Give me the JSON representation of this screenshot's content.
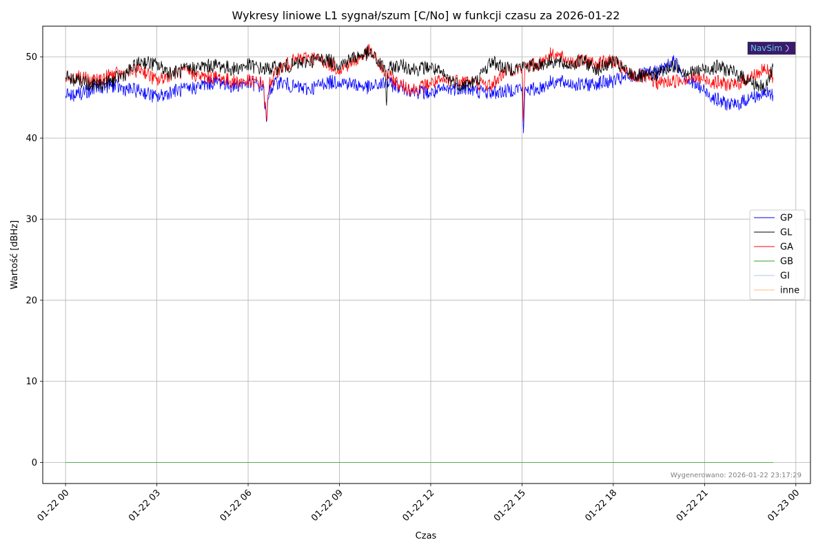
{
  "chart_data": {
    "type": "line",
    "title": "Wykresy liniowe L1 sygnał/szum [C/No] w funkcji czasu za 2026-01-22",
    "xlabel": "Czas",
    "ylabel": "Wartość [dBHz]",
    "x_range_hours": [
      -0.75,
      24.48
    ],
    "x_tick_hours": [
      0,
      3,
      6,
      9,
      12,
      15,
      18,
      21,
      24
    ],
    "x_tick_labels": [
      "01-22 00",
      "01-22 03",
      "01-22 06",
      "01-22 09",
      "01-22 12",
      "01-22 15",
      "01-22 18",
      "01-22 21",
      "01-23 00"
    ],
    "ylim": [
      -2.6,
      53.8
    ],
    "y_ticks": [
      0,
      10,
      20,
      30,
      40,
      50
    ],
    "grid": true,
    "legend_placement": "center-right",
    "footer_note": "Wygenerowano: 2026-01-22 23:17:29",
    "logo_text": "NavSim",
    "series": [
      {
        "name": "GP",
        "color": "#0000ff",
        "x_hours": [
          0,
          0.5,
          1,
          1.5,
          2,
          2.5,
          3,
          3.5,
          4,
          4.5,
          5,
          5.5,
          6,
          6.5,
          6.6,
          6.7,
          7,
          7.5,
          8,
          8.5,
          9,
          9.5,
          10,
          10.5,
          11,
          11.5,
          12,
          12.5,
          13,
          13.5,
          14,
          14.5,
          15,
          15.05,
          15.1,
          15.5,
          16,
          16.5,
          17,
          17.5,
          18,
          18.5,
          19,
          19.5,
          20,
          20.5,
          21,
          21.5,
          22,
          22.5,
          23,
          23.25
        ],
        "y": [
          45.2,
          45.5,
          46.2,
          46.5,
          46.0,
          45.8,
          45.0,
          45.8,
          46.0,
          46.5,
          47.0,
          46.4,
          46.8,
          46.3,
          42.0,
          46.0,
          47.0,
          46.3,
          46.0,
          46.8,
          47.0,
          46.6,
          46.2,
          46.8,
          46.3,
          45.8,
          45.5,
          46.0,
          46.2,
          45.8,
          45.6,
          45.8,
          46.3,
          40.6,
          46.0,
          46.0,
          47.0,
          46.8,
          46.5,
          46.8,
          47.0,
          47.5,
          47.8,
          48.2,
          49.5,
          47.0,
          45.8,
          44.5,
          44.0,
          45.0,
          45.5,
          45.3
        ]
      },
      {
        "name": "GL",
        "color": "#000000",
        "x_hours": [
          0,
          0.5,
          1,
          1.5,
          2,
          2.5,
          3,
          3.5,
          4,
          4.5,
          5,
          5.5,
          6,
          6.5,
          7,
          7.5,
          8,
          8.5,
          9,
          9.5,
          10,
          10.5,
          10.55,
          10.6,
          11,
          11.5,
          12,
          12.5,
          13,
          13.5,
          14,
          14.5,
          15,
          15.5,
          16,
          16.5,
          17,
          17.5,
          18,
          18.5,
          19,
          19.5,
          20,
          20.5,
          21,
          21.5,
          22,
          22.5,
          23,
          23.25
        ],
        "y": [
          47.5,
          47.0,
          46.5,
          47.0,
          48.0,
          49.5,
          49.0,
          48.0,
          48.5,
          48.8,
          49.0,
          48.5,
          49.0,
          48.5,
          48.7,
          49.0,
          49.5,
          49.8,
          49.0,
          50.0,
          50.5,
          48.5,
          44.0,
          48.5,
          49.0,
          48.5,
          48.8,
          47.5,
          46.5,
          47.0,
          49.5,
          48.5,
          48.8,
          49.0,
          49.5,
          49.0,
          49.5,
          48.5,
          49.5,
          48.0,
          47.5,
          48.0,
          49.0,
          48.0,
          48.5,
          48.8,
          48.0,
          47.0,
          46.0,
          48.8
        ]
      },
      {
        "name": "GA",
        "color": "#ff0000",
        "x_hours": [
          0,
          0.5,
          1,
          1.5,
          2,
          2.5,
          3,
          3.5,
          4,
          4.5,
          5,
          5.5,
          6,
          6.5,
          6.6,
          6.7,
          7,
          7.5,
          8,
          8.5,
          9,
          9.5,
          10,
          10.5,
          11,
          11.5,
          12,
          12.5,
          13,
          13.5,
          14,
          14.5,
          15,
          15.05,
          15.1,
          15.5,
          16,
          16.5,
          17,
          17.5,
          18,
          18.5,
          19,
          19.5,
          20,
          20.5,
          21,
          21.5,
          22,
          22.5,
          23,
          23.25
        ],
        "y": [
          47.2,
          47.5,
          47.0,
          47.8,
          48.0,
          48.5,
          47.0,
          48.0,
          48.2,
          47.5,
          47.5,
          47.0,
          47.0,
          46.8,
          42.2,
          46.8,
          48.5,
          49.5,
          50.0,
          49.5,
          48.5,
          49.5,
          50.8,
          48.0,
          46.5,
          46.0,
          46.8,
          47.0,
          47.2,
          46.8,
          46.5,
          48.5,
          48.5,
          42.0,
          49.0,
          49.0,
          50.5,
          49.5,
          49.5,
          49.2,
          49.5,
          47.8,
          47.5,
          46.8,
          47.0,
          47.5,
          47.2,
          46.8,
          46.5,
          47.5,
          48.5,
          47.5
        ]
      },
      {
        "name": "GB",
        "color": "#2ca02c",
        "x_hours": [
          0,
          23.25
        ],
        "y": [
          0,
          0
        ]
      },
      {
        "name": "GI",
        "color": "#aec7e8",
        "x_hours": [
          0,
          23.25
        ],
        "y": [
          0,
          0
        ]
      },
      {
        "name": "inne",
        "color": "#ffbb78",
        "x_hours": [
          0,
          23.25
        ],
        "y": [
          0,
          0
        ]
      }
    ]
  }
}
